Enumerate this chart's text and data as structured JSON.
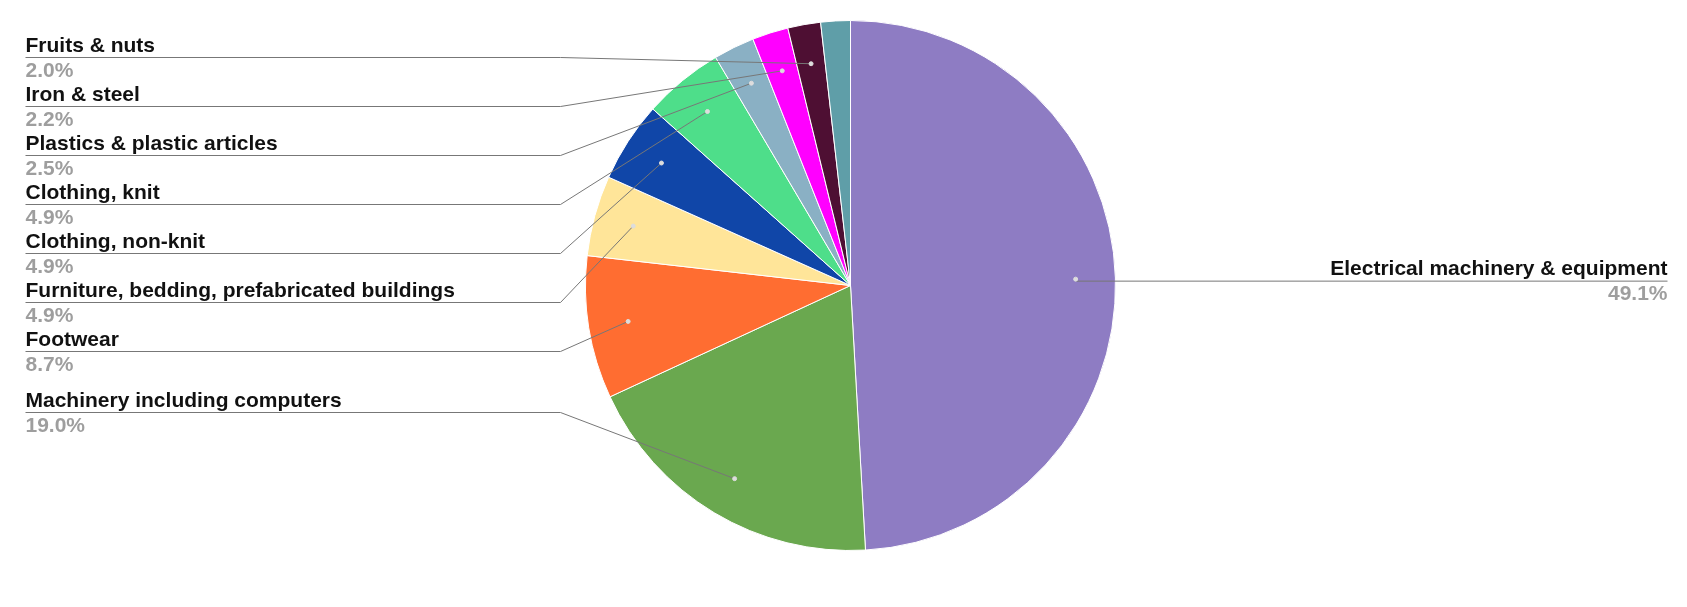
{
  "chart_data": {
    "type": "pie",
    "categories": [
      "Electrical machinery & equipment",
      "Machinery including computers",
      "Footwear",
      "Furniture, bedding, prefabricated buildings",
      "Clothing, non-knit",
      "Clothing, knit",
      "Plastics & plastic articles",
      "Iron & steel",
      "Fruits & nuts",
      null
    ],
    "values": [
      49.1,
      19.0,
      8.7,
      4.9,
      4.9,
      4.9,
      2.5,
      2.2,
      2.0,
      1.8
    ],
    "colors": [
      "#8e7cc3",
      "#6aa84f",
      "#ff6d31",
      "#ffe599",
      "#1046a8",
      "#4ede8a",
      "#8ab0c4",
      "#ff00ff",
      "#4e0f33",
      "#5f9ea8"
    ],
    "value_labels": [
      "49.1%",
      "19.0%",
      "8.7%",
      "4.9%",
      "4.9%",
      "4.9%",
      "2.5%",
      "2.2%",
      "2.0%",
      null
    ]
  }
}
